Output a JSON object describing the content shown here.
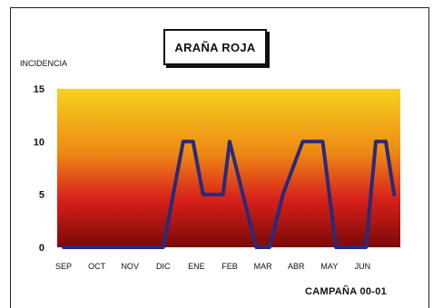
{
  "chart_data": {
    "type": "line",
    "title": "ARAÑA ROJA",
    "ylabel": "INCIDENCIA",
    "xlabel": "CAMPAÑA 00-01",
    "ylim": [
      0,
      15
    ],
    "yticks": [
      0,
      5,
      10,
      15
    ],
    "categories": [
      "SEP",
      "OCT",
      "NOV",
      "DIC",
      "ENE",
      "FEB",
      "MAR",
      "ABR",
      "MAY",
      "JUN"
    ],
    "x": [
      0,
      0.5,
      1,
      1.5,
      2,
      2.5,
      3,
      3.3,
      3.6,
      3.9,
      4.2,
      4.5,
      4.8,
      5.0,
      5.4,
      5.8,
      6.2,
      6.6,
      7.2,
      7.4,
      7.8,
      8.2,
      8.6,
      9.1,
      9.4,
      9.7,
      9.95
    ],
    "series": [
      {
        "values": [
          0,
          0,
          0,
          0,
          0,
          0,
          0,
          5,
          10,
          10,
          5,
          5,
          5,
          10,
          5,
          0,
          0,
          5,
          10,
          10,
          10,
          0,
          0,
          0,
          10,
          10,
          5
        ],
        "color": "#2a2a78"
      }
    ],
    "grid": false,
    "background_gradient": [
      "#f6d21c",
      "#ee8a14",
      "#d8201a",
      "#7a0a08"
    ]
  }
}
